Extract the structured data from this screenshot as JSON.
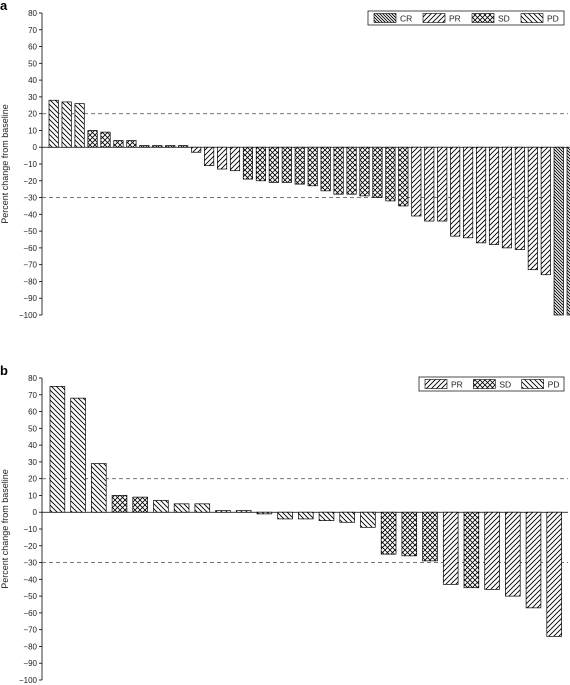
{
  "chart_data": [
    {
      "panel": "a",
      "type": "bar",
      "ylabel": "Percent change from baseline",
      "ylim": [
        -100,
        80
      ],
      "yticks": [
        80,
        70,
        60,
        50,
        40,
        30,
        20,
        10,
        0,
        -10,
        -20,
        -30,
        -40,
        -50,
        -60,
        -70,
        -80,
        -90,
        -100
      ],
      "reference_lines": [
        20,
        -30
      ],
      "legend": [
        "CR",
        "PR",
        "SD",
        "PD"
      ],
      "legend_position": "top-right",
      "series": [
        {
          "name": "PD",
          "values": [
            28,
            27,
            26
          ]
        },
        {
          "name": "SD",
          "values": [
            10,
            9,
            4,
            4,
            1,
            1,
            1,
            1
          ]
        },
        {
          "name": "PR",
          "values": [
            -3,
            -11,
            -13,
            -14
          ]
        },
        {
          "name": "SD",
          "values": [
            -19,
            -20,
            -21,
            -21,
            -22,
            -23,
            -26,
            -28,
            -28,
            -29,
            -30,
            -32,
            -35
          ]
        },
        {
          "name": "PR",
          "values": [
            -41,
            -44,
            -44,
            -53,
            -54,
            -57,
            -58,
            -60,
            -61,
            -73,
            -76
          ]
        },
        {
          "name": "CR",
          "values": [
            -100,
            -100
          ]
        }
      ],
      "values": [
        28,
        27,
        26,
        10,
        9,
        4,
        4,
        1,
        1,
        1,
        1,
        -3,
        -11,
        -13,
        -14,
        -19,
        -20,
        -21,
        -21,
        -22,
        -23,
        -26,
        -28,
        -28,
        -29,
        -30,
        -32,
        -35,
        -41,
        -44,
        -44,
        -53,
        -54,
        -57,
        -58,
        -60,
        -61,
        -73,
        -76,
        -100,
        -100
      ],
      "categories_response": [
        "PD",
        "PD",
        "PD",
        "SD",
        "SD",
        "SD",
        "SD",
        "SD",
        "SD",
        "SD",
        "SD",
        "PR",
        "PR",
        "PR",
        "PR",
        "SD",
        "SD",
        "SD",
        "SD",
        "SD",
        "SD",
        "SD",
        "SD",
        "SD",
        "SD",
        "SD",
        "SD",
        "SD",
        "PR",
        "PR",
        "PR",
        "PR",
        "PR",
        "PR",
        "PR",
        "PR",
        "PR",
        "PR",
        "PR",
        "CR",
        "CR"
      ]
    },
    {
      "panel": "b",
      "type": "bar",
      "ylabel": "Percent change from baseline",
      "ylim": [
        -100,
        80
      ],
      "yticks": [
        80,
        70,
        60,
        50,
        40,
        30,
        20,
        10,
        0,
        -10,
        -20,
        -30,
        -40,
        -50,
        -60,
        -70,
        -80,
        -90,
        -100
      ],
      "reference_lines": [
        20,
        -30
      ],
      "legend": [
        "PR",
        "SD",
        "PD"
      ],
      "legend_position": "top-right",
      "values": [
        75,
        68,
        29,
        10,
        9,
        7,
        5,
        5,
        1,
        1,
        -1,
        -4,
        -4,
        -5,
        -6,
        -9,
        -25,
        -26,
        -29,
        -43,
        -45,
        -46,
        -50,
        -57,
        -74
      ],
      "categories_response": [
        "PD",
        "PD",
        "PD",
        "SD",
        "SD",
        "PD",
        "PD",
        "PD",
        "PD",
        "PD",
        "PD",
        "PD",
        "PD",
        "PD",
        "PD",
        "PD",
        "SD",
        "SD",
        "SD",
        "PR",
        "SD",
        "PR",
        "PR",
        "PR",
        "PR"
      ]
    }
  ],
  "colors": {
    "axis": "#000000",
    "bar_stroke": "#000000",
    "reference_line": "#666666",
    "hatch": "#000000"
  }
}
